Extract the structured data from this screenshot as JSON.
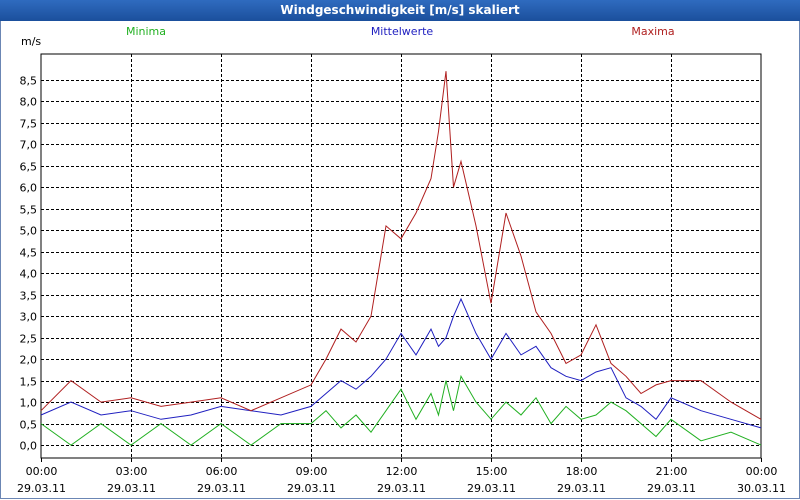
{
  "window": {
    "title": "Windgeschwindigkeit [m/s] skaliert"
  },
  "chart_data": {
    "type": "line",
    "title": "Windgeschwindigkeit [m/s] skaliert",
    "ylabel": "m/s",
    "xlabel": "",
    "ylim": [
      -0.3,
      9.1
    ],
    "xlim": [
      0,
      24
    ],
    "yticks": [
      0,
      0.5,
      1,
      1.5,
      2,
      2.5,
      3,
      3.5,
      4,
      4.5,
      5,
      5.5,
      6,
      6.5,
      7,
      7.5,
      8,
      8.5
    ],
    "ytick_labels": [
      "0,0",
      "0,5",
      "1,0",
      "1,5",
      "2,0",
      "2,5",
      "3,0",
      "3,5",
      "4,0",
      "4,5",
      "5,0",
      "5,5",
      "6,0",
      "6,5",
      "7,0",
      "7,5",
      "8,0",
      "8,5"
    ],
    "xticks": [
      {
        "time": "00:00",
        "date": "29.03.11",
        "h": 0
      },
      {
        "time": "03:00",
        "date": "29.03.11",
        "h": 3
      },
      {
        "time": "06:00",
        "date": "29.03.11",
        "h": 6
      },
      {
        "time": "09:00",
        "date": "29.03.11",
        "h": 9
      },
      {
        "time": "12:00",
        "date": "29.03.11",
        "h": 12
      },
      {
        "time": "15:00",
        "date": "29.03.11",
        "h": 15
      },
      {
        "time": "18:00",
        "date": "29.03.11",
        "h": 18
      },
      {
        "time": "21:00",
        "date": "29.03.11",
        "h": 21
      },
      {
        "time": "00:00",
        "date": "30.03.11",
        "h": 24
      }
    ],
    "x_hours": [
      0,
      1,
      2,
      3,
      4,
      5,
      6,
      7,
      8,
      9,
      9.5,
      10,
      10.5,
      11,
      11.5,
      12,
      12.5,
      13,
      13.25,
      13.5,
      13.75,
      14,
      14.5,
      15,
      15.5,
      16,
      16.5,
      17,
      17.5,
      18,
      18.5,
      19,
      19.5,
      20,
      20.5,
      21,
      22,
      23,
      24
    ],
    "series": [
      {
        "name": "Minima",
        "color": "#22b022",
        "values": [
          0.5,
          0.0,
          0.5,
          0.0,
          0.5,
          0.0,
          0.5,
          0.0,
          0.5,
          0.5,
          0.8,
          0.4,
          0.7,
          0.3,
          0.8,
          1.3,
          0.6,
          1.2,
          0.7,
          1.5,
          0.8,
          1.6,
          1.0,
          0.6,
          1.0,
          0.7,
          1.1,
          0.5,
          0.9,
          0.6,
          0.7,
          1.0,
          0.8,
          0.5,
          0.2,
          0.6,
          0.1,
          0.3,
          0.0
        ]
      },
      {
        "name": "Mittelwerte",
        "color": "#2020c0",
        "values": [
          0.7,
          1.0,
          0.7,
          0.8,
          0.6,
          0.7,
          0.9,
          0.8,
          0.7,
          0.9,
          1.2,
          1.5,
          1.3,
          1.6,
          2.0,
          2.6,
          2.1,
          2.7,
          2.3,
          2.5,
          3.0,
          3.4,
          2.6,
          2.0,
          2.6,
          2.1,
          2.3,
          1.8,
          1.6,
          1.5,
          1.7,
          1.8,
          1.1,
          0.9,
          0.6,
          1.1,
          0.8,
          0.6,
          0.4
        ]
      },
      {
        "name": "Maxima",
        "color": "#b02020",
        "values": [
          0.8,
          1.5,
          1.0,
          1.1,
          0.9,
          1.0,
          1.1,
          0.8,
          1.1,
          1.4,
          2.0,
          2.7,
          2.4,
          3.0,
          5.1,
          4.8,
          5.4,
          6.2,
          7.3,
          8.7,
          6.0,
          6.6,
          5.1,
          3.3,
          5.4,
          4.4,
          3.1,
          2.6,
          1.9,
          2.1,
          2.8,
          1.9,
          1.6,
          1.2,
          1.4,
          1.5,
          1.5,
          1.0,
          0.6
        ]
      }
    ]
  }
}
